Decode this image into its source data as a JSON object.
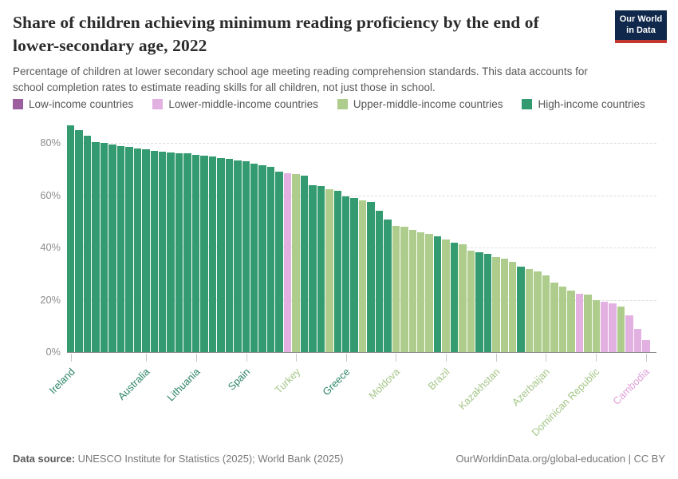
{
  "header": {
    "title_line1": "Share of children achieving minimum reading proficiency by the end of",
    "title_line2": "lower-secondary age, 2022",
    "subtitle_line1": "Percentage of children at lower secondary school age meeting reading comprehension standards. This data accounts for",
    "subtitle_line2": "school completion rates to estimate reading skills for all children, not just those in school.",
    "logo_line1": "Our World",
    "logo_line2": "in Data"
  },
  "legend": {
    "items": [
      {
        "label": "Low-income countries",
        "color": "#9b5fa0",
        "key": "low"
      },
      {
        "label": "Lower-middle-income countries",
        "color": "#e3b1e1",
        "key": "l"
      },
      {
        "label": "Upper-middle-income countries",
        "color": "#aecd8c",
        "key": "u"
      },
      {
        "label": "High-income countries",
        "color": "#339b6f",
        "key": "h"
      }
    ]
  },
  "chart_data": {
    "type": "bar",
    "unit": "%",
    "ylim": [
      0,
      89
    ],
    "grid": "horizontal-dashed",
    "legend_position": "top",
    "yticks": [
      0,
      20,
      40,
      60,
      80
    ],
    "ytick_labels": [
      "0%",
      "20%",
      "40%",
      "60%",
      "80%"
    ],
    "category_names": {
      "low": "Low-income countries",
      "l": "Lower-middle-income countries",
      "u": "Upper-middle-income countries",
      "h": "High-income countries"
    },
    "bar_colors": {
      "low": "#9b5fa0",
      "l": "#e3b1e1",
      "u": "#aecd8c",
      "h": "#339b6f"
    },
    "tick_label_colors": {
      "low": "#9b5fa0",
      "l": "#dfa0d9",
      "u": "#a4c687",
      "h": "#2c8465"
    },
    "values": [
      87,
      85,
      83,
      80.5,
      80,
      79.5,
      79,
      78.5,
      78,
      77.6,
      77.2,
      76.9,
      76.6,
      76.3,
      76,
      75.6,
      75.2,
      74.8,
      74.4,
      74,
      73.5,
      73,
      72.3,
      71.7,
      71,
      69.2,
      68.6,
      68.1,
      67.6,
      64,
      63.6,
      62.4,
      61.7,
      59.5,
      59.1,
      58.1,
      57.5,
      54,
      50.7,
      48.4,
      48,
      46.8,
      46,
      45.3,
      44.3,
      43.1,
      41.9,
      41.4,
      38.8,
      38.3,
      37.6,
      36.4,
      35.7,
      34.5,
      32.6,
      31.8,
      30.8,
      29.4,
      26.5,
      25.2,
      23.4,
      22.3,
      21.9,
      20,
      19.2,
      18.7,
      17.3,
      14,
      8.8,
      4.5
    ],
    "income_group": [
      "h",
      "h",
      "h",
      "h",
      "h",
      "h",
      "h",
      "h",
      "h",
      "h",
      "h",
      "h",
      "h",
      "h",
      "h",
      "h",
      "h",
      "h",
      "h",
      "h",
      "h",
      "h",
      "h",
      "h",
      "h",
      "h",
      "l",
      "u",
      "h",
      "h",
      "h",
      "u",
      "h",
      "h",
      "h",
      "u",
      "h",
      "h",
      "h",
      "u",
      "u",
      "u",
      "u",
      "u",
      "h",
      "u",
      "h",
      "u",
      "u",
      "h",
      "h",
      "u",
      "u",
      "u",
      "h",
      "u",
      "u",
      "u",
      "u",
      "u",
      "u",
      "l",
      "u",
      "u",
      "l",
      "l",
      "u",
      "l",
      "l",
      "l"
    ],
    "x_tick_labels": [
      {
        "label": "Ireland",
        "bar": 1,
        "group": "h"
      },
      {
        "label": "Australia",
        "bar": 10,
        "group": "h"
      },
      {
        "label": "Lithuania",
        "bar": 16,
        "group": "h"
      },
      {
        "label": "Spain",
        "bar": 22,
        "group": "h"
      },
      {
        "label": "Turkey",
        "bar": 28,
        "group": "u"
      },
      {
        "label": "Greece",
        "bar": 34,
        "group": "h"
      },
      {
        "label": "Moldova",
        "bar": 40,
        "group": "u"
      },
      {
        "label": "Brazil",
        "bar": 46,
        "group": "u"
      },
      {
        "label": "Kazakhstan",
        "bar": 52,
        "group": "u"
      },
      {
        "label": "Azerbaijan",
        "bar": 58,
        "group": "u"
      },
      {
        "label": "Dominican Republic",
        "bar": 64,
        "group": "u"
      },
      {
        "label": "Cambodia",
        "bar": 70,
        "group": "l"
      }
    ]
  },
  "footer": {
    "source_label": "Data source:",
    "source_text": " UNESCO Institute for Statistics (2025); World Bank (2025)",
    "right_text": "OurWorldinData.org/global-education | CC BY"
  }
}
